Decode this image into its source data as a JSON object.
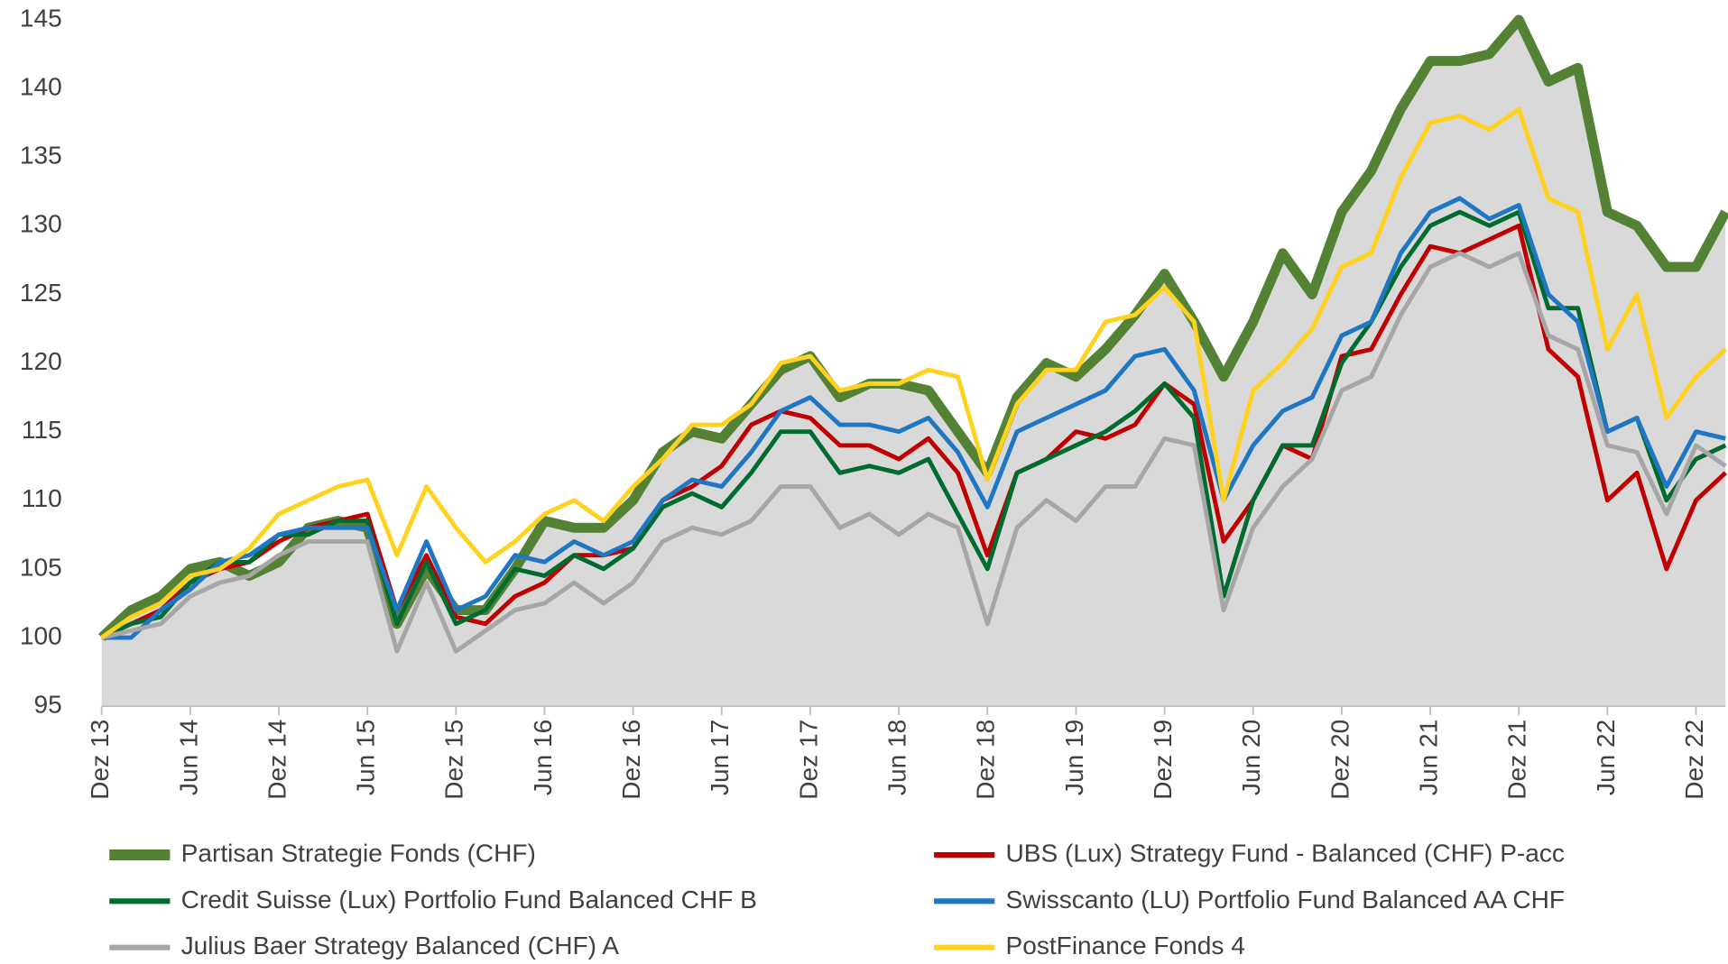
{
  "chart_data": {
    "type": "line",
    "categories": [
      "Dez 13",
      null,
      null,
      "Jun 14",
      null,
      null,
      "Dez 14",
      null,
      null,
      "Jun 15",
      null,
      null,
      "Dez 15",
      null,
      null,
      "Jun 16",
      null,
      null,
      "Dez 16",
      null,
      null,
      "Jun 17",
      null,
      null,
      "Dez 17",
      null,
      null,
      "Jun 18",
      null,
      null,
      "Dez 18",
      null,
      null,
      "Jun 19",
      null,
      null,
      "Dez 19",
      null,
      null,
      "Jun 20",
      null,
      null,
      "Dez 20",
      null,
      null,
      "Jun 21",
      null,
      null,
      "Dez 21",
      null,
      null,
      "Jun 22",
      null,
      null,
      "Dez 22",
      null
    ],
    "ylim": [
      95,
      145
    ],
    "yticks": [
      95,
      100,
      105,
      110,
      115,
      120,
      125,
      130,
      135,
      140,
      145
    ],
    "grid": false,
    "legend": "bottom",
    "area_color": "#d9d9d9",
    "series": [
      {
        "name": "Partisan Strategie Fonds (CHF)",
        "color": "#548235",
        "values": [
          100,
          102,
          103,
          105,
          105.5,
          104.5,
          105.5,
          108,
          108.5,
          108,
          101,
          105,
          102,
          102,
          105,
          108.5,
          108,
          108,
          110,
          113.5,
          115,
          114.5,
          117,
          119.5,
          120.5,
          117.5,
          118.5,
          118.5,
          118,
          115,
          112,
          117.5,
          120,
          119,
          121,
          123.5,
          126.5,
          123,
          119,
          123,
          128,
          125,
          131,
          134,
          138.5,
          142,
          142,
          142.5,
          145,
          140.5,
          141.5,
          131,
          130,
          127,
          127,
          131
        ]
      },
      {
        "name": "UBS (Lux) Strategy Fund - Balanced (CHF) P-acc",
        "color": "#c00000",
        "values": [
          100,
          101,
          102,
          104,
          105,
          105.5,
          107,
          108,
          108.5,
          109,
          102,
          106,
          101.5,
          101,
          103,
          104,
          106,
          106,
          106.5,
          110,
          111,
          112.5,
          115.5,
          116.5,
          116,
          114,
          114,
          113,
          114.5,
          112,
          106,
          112,
          113,
          115,
          114.5,
          115.5,
          118.5,
          117,
          107,
          110,
          114,
          113,
          120.5,
          121,
          125,
          128.5,
          128,
          129,
          130,
          121,
          119,
          110,
          112,
          105,
          110,
          112
        ]
      },
      {
        "name": "Credit Suisse (Lux) Portfolio Fund Balanced CHF B",
        "color": "#006b2e",
        "values": [
          100,
          101,
          101.5,
          104,
          105.5,
          105.5,
          107.5,
          107.5,
          108.5,
          108.5,
          101,
          105.5,
          101,
          102,
          105,
          104.5,
          106,
          105,
          106.5,
          109.5,
          110.5,
          109.5,
          112,
          115,
          115,
          112,
          112.5,
          112,
          113,
          109,
          105,
          112,
          113,
          114,
          115,
          116.5,
          118.5,
          116,
          103,
          110,
          114,
          114,
          120,
          123,
          127,
          130,
          131,
          130,
          131,
          124,
          124,
          115,
          116,
          110,
          113,
          114
        ]
      },
      {
        "name": "Swisscanto (LU) Portfolio Fund Balanced AA CHF",
        "color": "#1f77c4",
        "values": [
          100,
          100,
          102,
          103.5,
          105.5,
          106,
          107.5,
          108,
          108,
          108,
          102,
          107,
          102,
          103,
          106,
          105.5,
          107,
          106,
          107,
          110,
          111.5,
          111,
          113.5,
          116.5,
          117.5,
          115.5,
          115.5,
          115,
          116,
          113.5,
          109.5,
          115,
          116,
          117,
          118,
          120.5,
          121,
          118,
          110,
          114,
          116.5,
          117.5,
          122,
          123,
          128,
          131,
          132,
          130.5,
          131.5,
          125,
          123,
          115,
          116,
          111,
          115,
          114.5
        ]
      },
      {
        "name": "Julius Baer Strategy Balanced (CHF) A",
        "color": "#a6a6a6",
        "values": [
          100,
          100.5,
          101,
          103,
          104,
          104.5,
          106,
          107,
          107,
          107,
          99,
          104,
          99,
          100.5,
          102,
          102.5,
          104,
          102.5,
          104,
          107,
          108,
          107.5,
          108.5,
          111,
          111,
          108,
          109,
          107.5,
          109,
          108,
          101,
          108,
          110,
          108.5,
          111,
          111,
          114.5,
          114,
          102,
          108,
          111,
          113,
          118,
          119,
          123.5,
          127,
          128,
          127,
          128,
          122,
          121,
          114,
          113.5,
          109,
          114,
          112.5
        ]
      },
      {
        "name": "PostFinance Fonds 4",
        "color": "#ffd21f",
        "values": [
          100,
          101.5,
          102.5,
          104.5,
          105,
          106.5,
          109,
          110,
          111,
          111.5,
          106,
          111,
          108,
          105.5,
          107,
          109,
          110,
          108.5,
          111,
          113,
          115.5,
          115.5,
          117,
          120,
          120.5,
          118,
          118.5,
          118.5,
          119.5,
          119,
          111.5,
          117,
          119.5,
          119.5,
          123,
          123.5,
          125.5,
          123,
          110,
          118,
          120,
          122.5,
          127,
          128,
          133.5,
          137.5,
          138,
          137,
          138.5,
          132,
          131,
          121,
          125,
          116,
          119,
          121
        ]
      }
    ]
  }
}
